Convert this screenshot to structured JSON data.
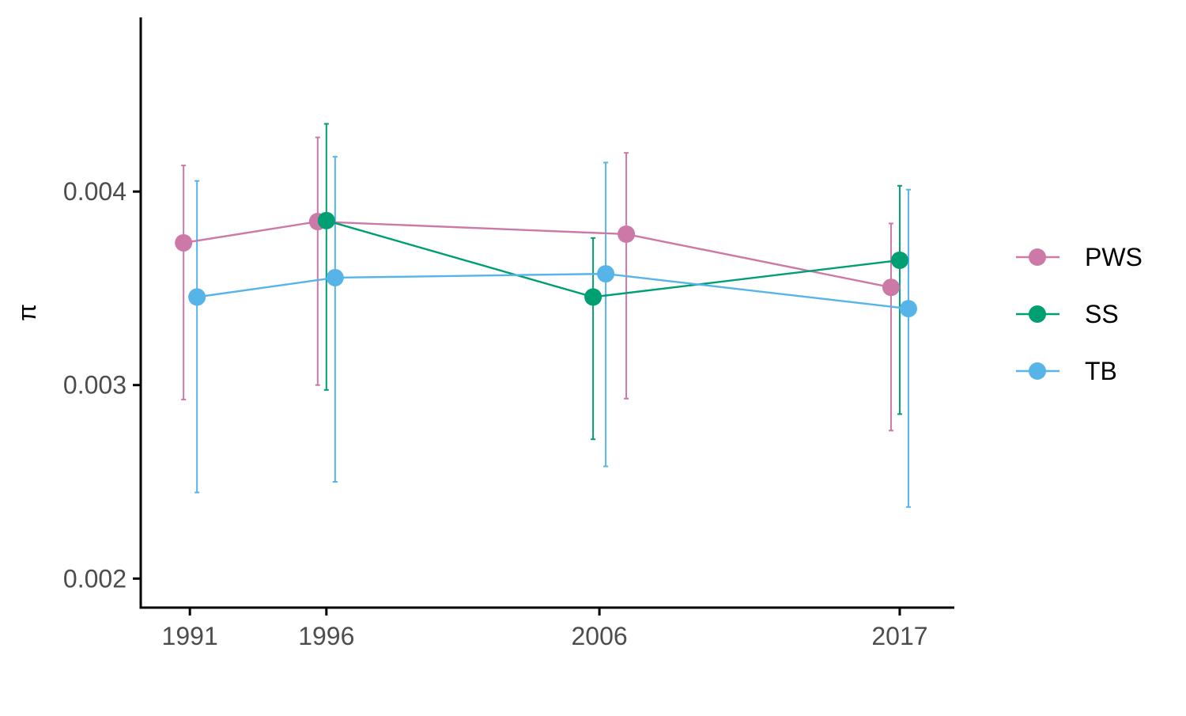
{
  "colors": {
    "PWS": "#CC79A7",
    "SS": "#009E73",
    "TB": "#56B4E9",
    "axis": "#000000",
    "tick_text": "#4d4d4d"
  },
  "chart_data": {
    "type": "line",
    "title": "",
    "xlabel": "",
    "ylabel": "π",
    "x_ticks": [
      "1991",
      "1996",
      "2006",
      "2017"
    ],
    "y_ticks": [
      "0.002",
      "0.003",
      "0.004"
    ],
    "y_tick_values": [
      0.002,
      0.003,
      0.004
    ],
    "ylim": [
      0.00185,
      0.0049
    ],
    "xlim": [
      1989.2,
      2019.0
    ],
    "grid": false,
    "legend_position": "right",
    "error_bars": true,
    "series": [
      {
        "name": "PWS",
        "color_key": "PWS",
        "points": [
          {
            "x": 1991,
            "y": 0.003735,
            "lo": 0.002925,
            "hi": 0.004135
          },
          {
            "x": 1996,
            "y": 0.003845,
            "lo": 0.003,
            "hi": 0.00428
          },
          {
            "x": 2006,
            "y": 0.00378,
            "lo": 0.00293,
            "hi": 0.0042
          },
          {
            "x": 2017,
            "y": 0.003505,
            "lo": 0.002765,
            "hi": 0.003835
          }
        ]
      },
      {
        "name": "SS",
        "color_key": "SS",
        "points": [
          {
            "x": 1996,
            "y": 0.00385,
            "lo": 0.002975,
            "hi": 0.00435
          },
          {
            "x": 2006,
            "y": 0.003455,
            "lo": 0.00272,
            "hi": 0.00376
          },
          {
            "x": 2017,
            "y": 0.003645,
            "lo": 0.00285,
            "hi": 0.00403
          }
        ]
      },
      {
        "name": "TB",
        "color_key": "TB",
        "points": [
          {
            "x": 1991,
            "y": 0.003455,
            "lo": 0.002445,
            "hi": 0.004055
          },
          {
            "x": 1996,
            "y": 0.003555,
            "lo": 0.0025,
            "hi": 0.00418
          },
          {
            "x": 2006,
            "y": 0.003575,
            "lo": 0.00258,
            "hi": 0.00415
          },
          {
            "x": 2017,
            "y": 0.003395,
            "lo": 0.00237,
            "hi": 0.00401
          }
        ]
      }
    ]
  }
}
